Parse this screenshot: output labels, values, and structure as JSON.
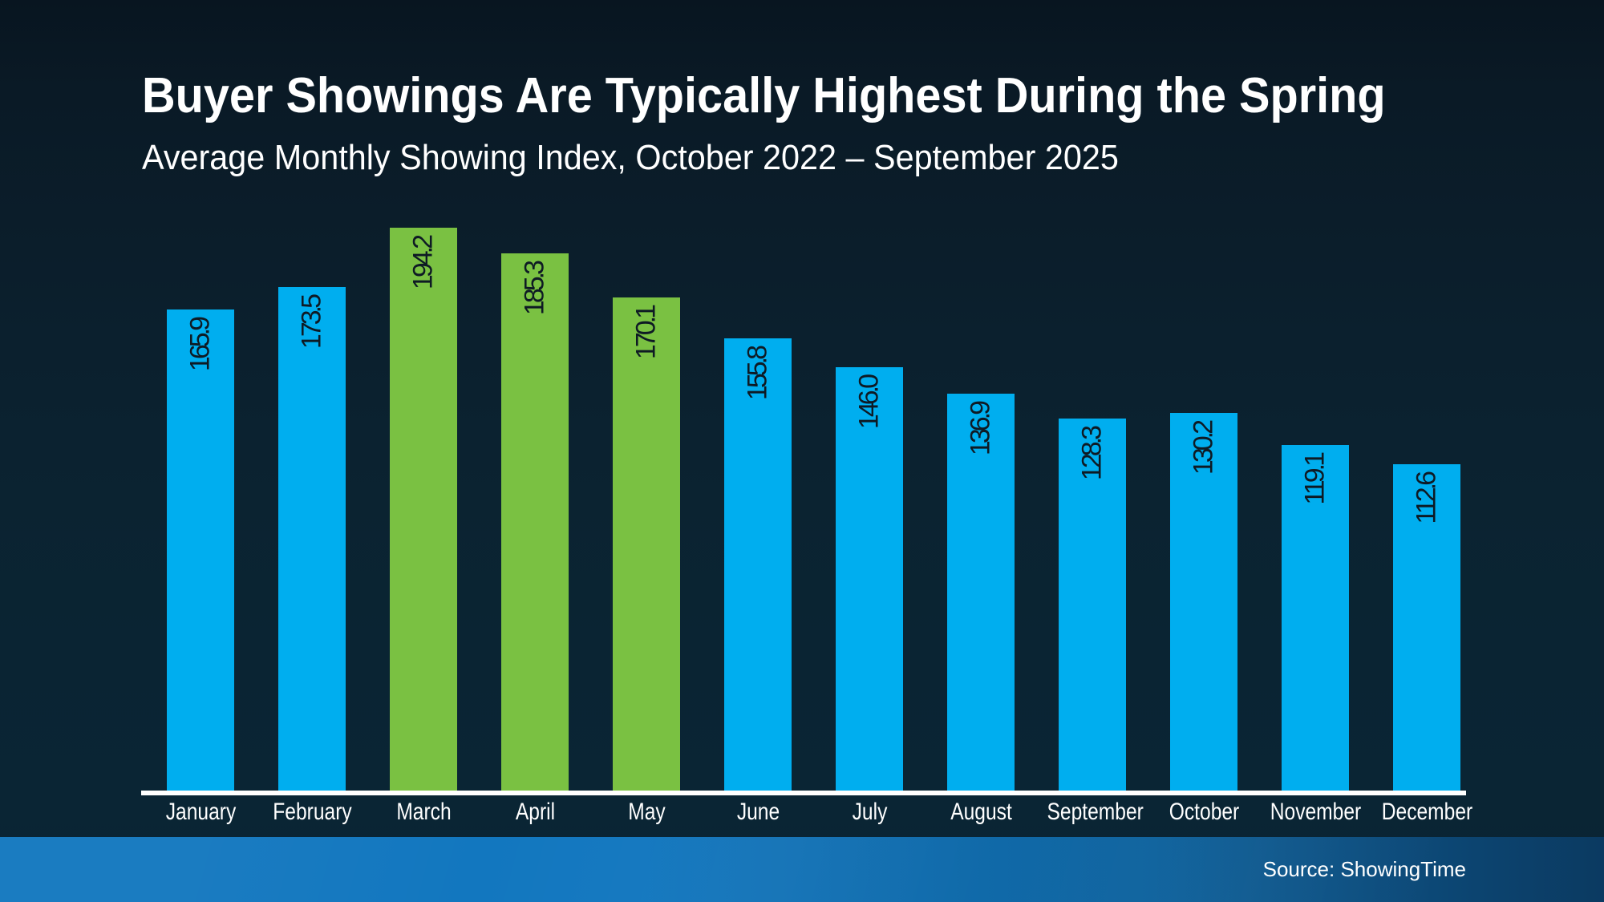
{
  "header": {
    "title": "Buyer Showings Are Typically Highest During the Spring",
    "subtitle": "Average Monthly Showing Index, October 2022 – September 2025"
  },
  "chart_data": {
    "type": "bar",
    "title": "Buyer Showings Are Typically Highest During the Spring",
    "subtitle": "Average Monthly Showing Index, October 2022 – September 2025",
    "categories": [
      "January",
      "February",
      "March",
      "April",
      "May",
      "June",
      "July",
      "August",
      "September",
      "October",
      "November",
      "December"
    ],
    "values": [
      165.9,
      173.5,
      194.2,
      185.3,
      170.1,
      155.8,
      146.0,
      136.9,
      128.3,
      130.2,
      119.1,
      112.6
    ],
    "value_labels": [
      "165.9",
      "173.5",
      "194.2",
      "185.3",
      "170.1",
      "155.8",
      "146.0",
      "136.9",
      "128.3",
      "130.2",
      "119.1",
      "112.6"
    ],
    "highlighted_categories": [
      "March",
      "April",
      "May"
    ],
    "xlabel": "",
    "ylabel": "",
    "ylim": [
      0,
      200
    ],
    "grid": false,
    "legend": "none",
    "value_label_rotation": "vertical-bottom-to-top",
    "colors": {
      "bar_default": "#00aeef",
      "bar_highlight": "#7ac142",
      "value_label": "#0e1a24",
      "axis_line": "#ffffff",
      "category_label": "#ffffff"
    }
  },
  "footer": {
    "source": "Source: ShowingTime"
  }
}
